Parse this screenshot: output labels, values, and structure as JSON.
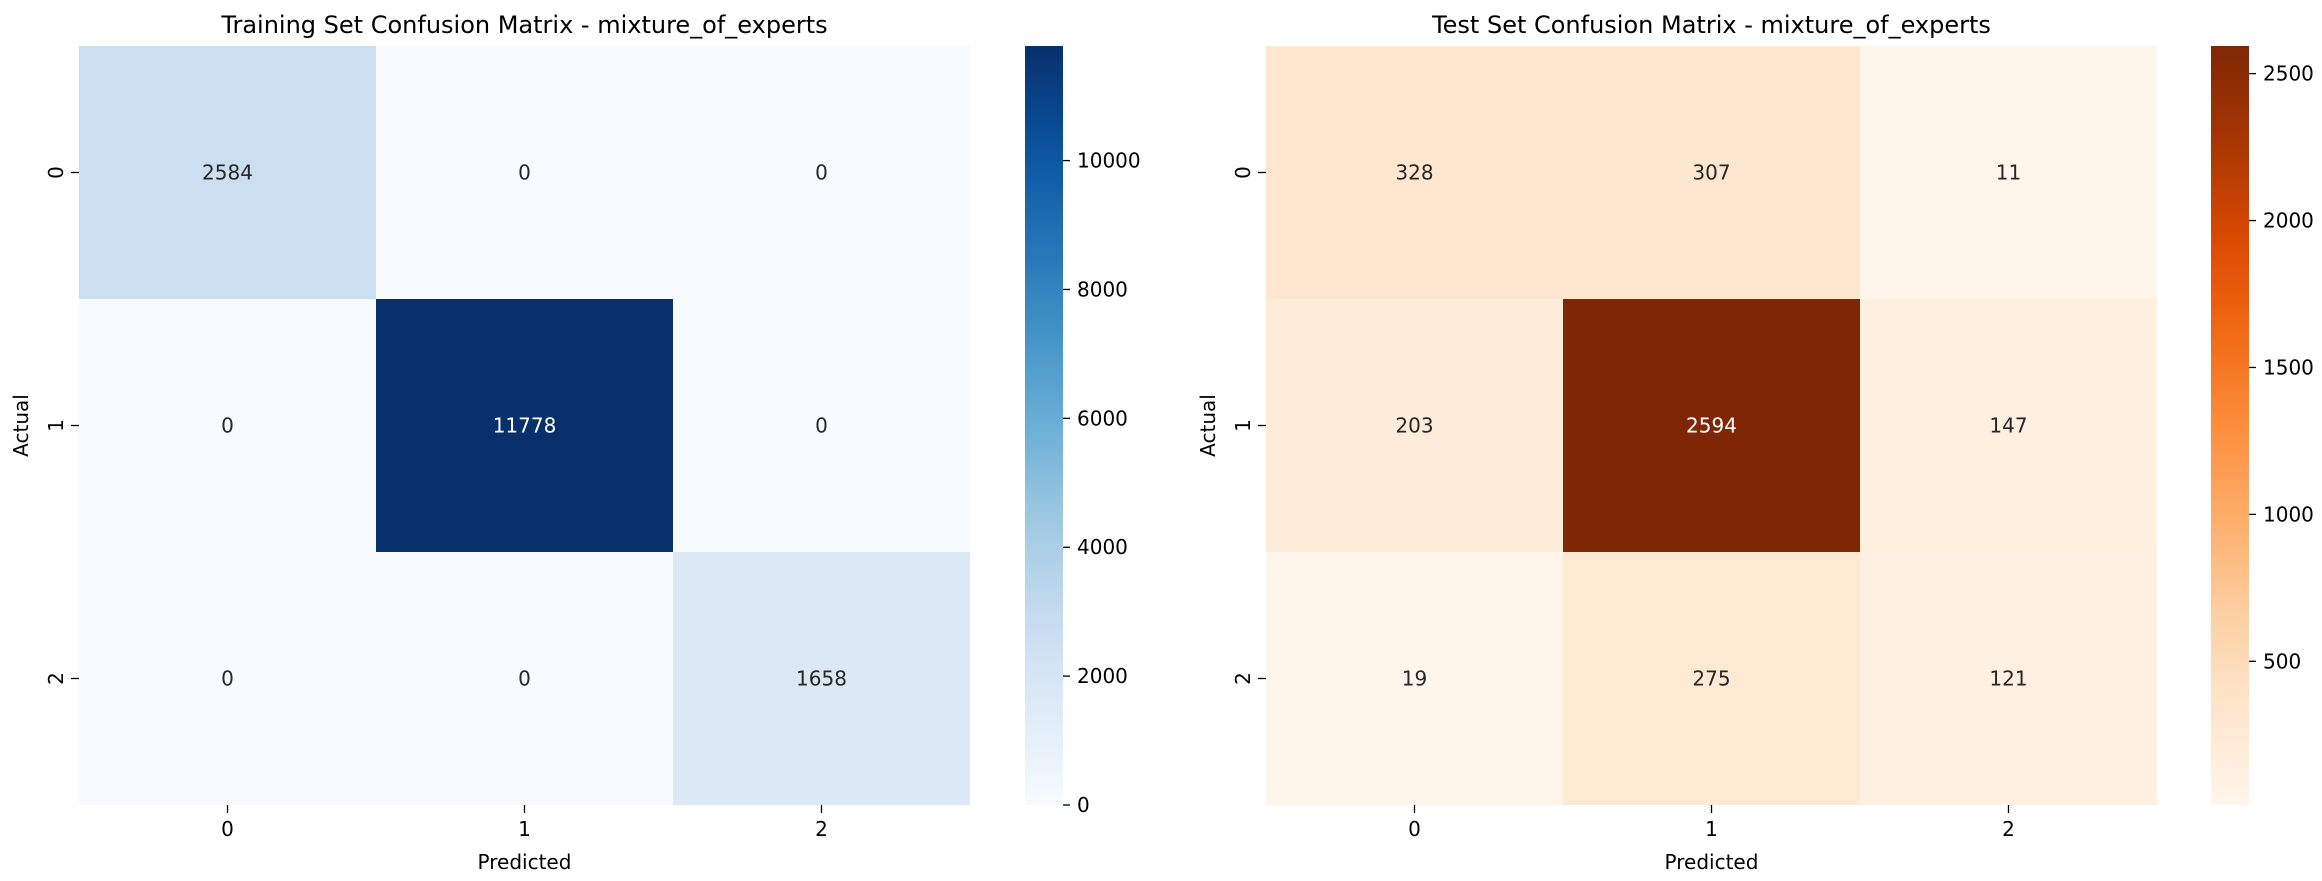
{
  "chart_data": [
    {
      "type": "heatmap",
      "title": "Training Set Confusion Matrix - mixture_of_experts",
      "xlabel": "Predicted",
      "ylabel": "Actual",
      "x_categories": [
        "0",
        "1",
        "2"
      ],
      "y_categories": [
        "0",
        "1",
        "2"
      ],
      "values": [
        [
          2584,
          0,
          0
        ],
        [
          0,
          11778,
          0
        ],
        [
          0,
          0,
          1658
        ]
      ],
      "colormap": "Blues",
      "colorbar": {
        "min": 0,
        "max": 11778,
        "ticks": [
          0,
          2000,
          4000,
          6000,
          8000,
          10000
        ]
      },
      "grid": false
    },
    {
      "type": "heatmap",
      "title": "Test Set Confusion Matrix - mixture_of_experts",
      "xlabel": "Predicted",
      "ylabel": "Actual",
      "x_categories": [
        "0",
        "1",
        "2"
      ],
      "y_categories": [
        "0",
        "1",
        "2"
      ],
      "values": [
        [
          328,
          307,
          11
        ],
        [
          203,
          2594,
          147
        ],
        [
          19,
          275,
          121
        ]
      ],
      "colormap": "Oranges",
      "colorbar": {
        "min": 11,
        "max": 2594,
        "ticks": [
          500,
          1000,
          1500,
          2000,
          2500
        ]
      },
      "grid": false
    }
  ],
  "colormaps": {
    "Blues": [
      "#f7fbff",
      "#deebf7",
      "#c6dbef",
      "#9ecae1",
      "#6baed6",
      "#4292c6",
      "#2171b5",
      "#08519c",
      "#08306b"
    ],
    "Oranges": [
      "#fff5eb",
      "#fee6ce",
      "#fdd0a2",
      "#fdae6b",
      "#fd8d3c",
      "#f16913",
      "#d94801",
      "#a63603",
      "#7f2704"
    ]
  }
}
